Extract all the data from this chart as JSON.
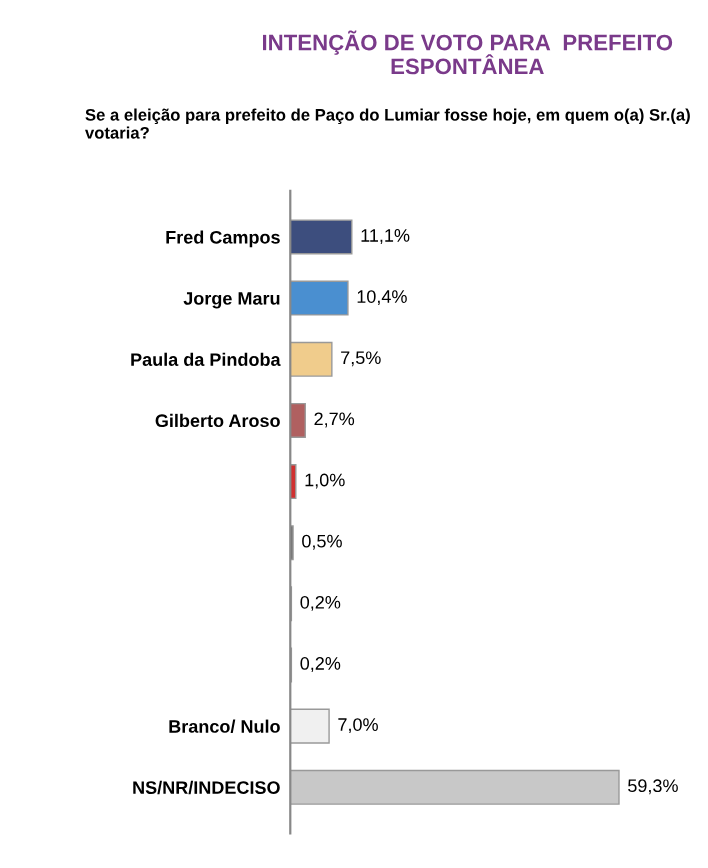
{
  "chart_data": {
    "type": "bar",
    "orientation": "horizontal",
    "title": "INTENÇÃO DE VOTO PARA  PREFEITO\nESPONTÂNEA",
    "subtitle": "Se a eleição para prefeito de Paço do Lumiar fosse hoje, em quem o(a) Sr.(a) votaria?",
    "categories": [
      "Fred Campos",
      "Jorge Maru",
      "Paula da Pindoba",
      "Gilberto Aroso",
      null,
      null,
      null,
      null,
      "Branco/ Nulo",
      "NS/NR/INDECISO"
    ],
    "values": [
      11.1,
      10.4,
      7.5,
      2.7,
      1.0,
      0.5,
      0.2,
      0.2,
      7.0,
      59.3
    ],
    "colors": [
      "#3d4e7e",
      "#4a8fd0",
      "#f0cc8c",
      "#b06060",
      "#d03030",
      "#707070",
      "#80a050",
      "#6a5a90",
      "#f0f0f0",
      "#c8c8c8"
    ],
    "value_labels": [
      "11,1%",
      "10,4%",
      "7,5%",
      "2,7%",
      "1,0%",
      "0,5%",
      "0,2%",
      "0,2%",
      "7,0%",
      "59,3%"
    ],
    "grid": false,
    "legend": false
  }
}
